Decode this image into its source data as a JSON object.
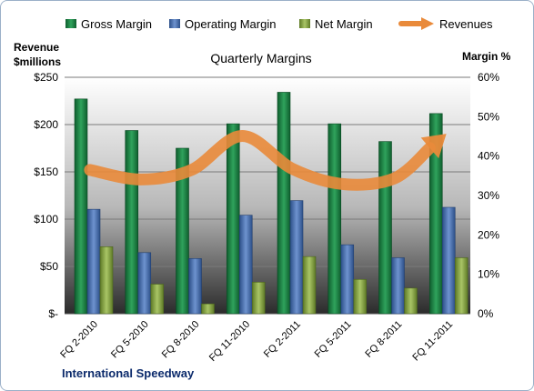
{
  "chart_data": {
    "type": "bar",
    "title": "Quarterly Margins",
    "company": "International Speedway",
    "ylabel_left": [
      "Revenue",
      "$millions"
    ],
    "ylabel_right": "Margin %",
    "categories": [
      "FQ 2-2010",
      "FQ 5-2010",
      "FQ 8-2010",
      "FQ 11-2010",
      "FQ 2-2011",
      "FQ 5-2011",
      "FQ 8-2011",
      "FQ 11-2011"
    ],
    "left_axis": {
      "min": 0,
      "max": 250,
      "ticks": [
        0,
        50,
        100,
        150,
        200,
        250
      ],
      "tick_labels": [
        "$-",
        "$50",
        "$100",
        "$150",
        "$200",
        "$250"
      ]
    },
    "right_axis": {
      "min": 0,
      "max": 60,
      "ticks": [
        0,
        10,
        20,
        30,
        40,
        50,
        60
      ],
      "tick_labels": [
        "0%",
        "10%",
        "20%",
        "30%",
        "40%",
        "50%",
        "60%"
      ]
    },
    "series": [
      {
        "name": "Gross Margin",
        "kind": "bar",
        "axis": "right",
        "color": "#1f8a4a",
        "values": [
          54.5,
          46.5,
          42,
          48.2,
          56.2,
          48.2,
          43.7,
          50.8
        ]
      },
      {
        "name": "Operating Margin",
        "kind": "bar",
        "axis": "right",
        "color": "#4f77b8",
        "values": [
          26.5,
          15.5,
          14,
          25,
          28.7,
          17.5,
          14.2,
          27
        ]
      },
      {
        "name": "Net Margin",
        "kind": "bar",
        "axis": "right",
        "color": "#8fae4a",
        "values": [
          17,
          7.5,
          2.5,
          8,
          14.5,
          8.7,
          6.5,
          14.2
        ]
      },
      {
        "name": "Revenues",
        "kind": "line",
        "axis": "left",
        "color": "#e98a3a",
        "values": [
          152,
          142,
          152,
          188,
          153,
          137,
          143,
          189
        ]
      }
    ],
    "legend_position": "top",
    "grid": true
  }
}
